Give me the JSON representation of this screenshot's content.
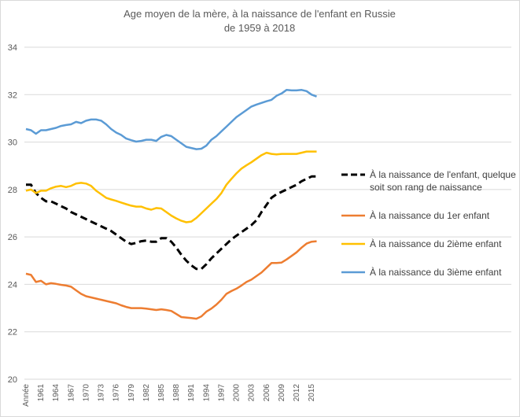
{
  "chart_data": {
    "type": "line",
    "title": [
      "Age moyen de la mère, à la naissance de l'enfant en Russie",
      "de 1959 à 2018"
    ],
    "categories": [
      "Année",
      null,
      null,
      "1961",
      null,
      null,
      "1964",
      null,
      null,
      "1967",
      null,
      null,
      "1970",
      null,
      null,
      "1973",
      null,
      null,
      "1976",
      null,
      null,
      "1979",
      null,
      null,
      "1982",
      null,
      null,
      "1985",
      null,
      null,
      "1988",
      null,
      null,
      "1991",
      null,
      null,
      "1994",
      null,
      null,
      "1997",
      null,
      null,
      "2000",
      null,
      null,
      "2003",
      null,
      null,
      "2006",
      null,
      null,
      "2009",
      null,
      null,
      "2012",
      null,
      null,
      "2015",
      null
    ],
    "ylim": [
      20,
      34
    ],
    "yticks": [
      20,
      22,
      24,
      26,
      28,
      30,
      32,
      34
    ],
    "grid": true,
    "series": [
      {
        "name": "À la naissance de l'enfant, quelque soit son rang de naissance",
        "color": "#000000",
        "dash": true,
        "values": [
          28.2,
          28.2,
          27.85,
          27.65,
          27.5,
          27.5,
          27.4,
          27.3,
          27.2,
          27.05,
          26.95,
          26.85,
          26.75,
          26.65,
          26.55,
          26.45,
          26.35,
          26.25,
          26.1,
          25.95,
          25.8,
          25.7,
          25.75,
          25.82,
          25.85,
          25.8,
          25.8,
          25.95,
          25.95,
          25.8,
          25.55,
          25.25,
          25.0,
          24.8,
          24.65,
          24.65,
          24.85,
          25.1,
          25.3,
          25.5,
          25.7,
          25.9,
          26.05,
          26.2,
          26.35,
          26.5,
          26.7,
          27.05,
          27.35,
          27.65,
          27.8,
          27.9,
          28.0,
          28.1,
          28.2,
          28.35,
          28.45,
          28.55,
          28.55
        ]
      },
      {
        "name": "À la naissance du 1er enfant",
        "color": "#ed7d31",
        "dash": false,
        "values": [
          24.45,
          24.4,
          24.1,
          24.15,
          24.0,
          24.05,
          24.02,
          23.98,
          23.95,
          23.9,
          23.75,
          23.6,
          23.5,
          23.45,
          23.4,
          23.35,
          23.3,
          23.25,
          23.2,
          23.12,
          23.05,
          23.0,
          23.0,
          23.0,
          22.98,
          22.95,
          22.92,
          22.95,
          22.92,
          22.88,
          22.75,
          22.62,
          22.6,
          22.58,
          22.55,
          22.65,
          22.85,
          22.98,
          23.15,
          23.35,
          23.6,
          23.72,
          23.82,
          23.95,
          24.1,
          24.2,
          24.35,
          24.5,
          24.7,
          24.9,
          24.9,
          24.92,
          25.05,
          25.2,
          25.35,
          25.55,
          25.72,
          25.8,
          25.82
        ]
      },
      {
        "name": "À la naissance du 2ième enfant",
        "color": "#ffc000",
        "dash": false,
        "values": [
          27.95,
          28.0,
          27.85,
          27.95,
          27.95,
          28.05,
          28.12,
          28.15,
          28.1,
          28.15,
          28.25,
          28.28,
          28.25,
          28.15,
          27.95,
          27.8,
          27.65,
          27.58,
          27.52,
          27.45,
          27.38,
          27.32,
          27.28,
          27.28,
          27.2,
          27.15,
          27.22,
          27.2,
          27.05,
          26.9,
          26.78,
          26.68,
          26.62,
          26.65,
          26.8,
          27.0,
          27.2,
          27.4,
          27.6,
          27.85,
          28.2,
          28.45,
          28.68,
          28.88,
          29.02,
          29.15,
          29.3,
          29.45,
          29.55,
          29.5,
          29.48,
          29.5,
          29.5,
          29.5,
          29.5,
          29.55,
          29.6,
          29.6,
          29.6
        ]
      },
      {
        "name": "À la naissance du 3ième enfant",
        "color": "#5b9bd5",
        "dash": false,
        "values": [
          30.55,
          30.5,
          30.35,
          30.5,
          30.5,
          30.55,
          30.6,
          30.68,
          30.72,
          30.75,
          30.85,
          30.8,
          30.9,
          30.95,
          30.95,
          30.9,
          30.75,
          30.55,
          30.4,
          30.3,
          30.15,
          30.08,
          30.02,
          30.05,
          30.1,
          30.1,
          30.05,
          30.22,
          30.3,
          30.25,
          30.1,
          29.95,
          29.8,
          29.75,
          29.7,
          29.72,
          29.85,
          30.1,
          30.25,
          30.45,
          30.65,
          30.85,
          31.05,
          31.2,
          31.35,
          31.5,
          31.58,
          31.65,
          31.72,
          31.78,
          31.95,
          32.05,
          32.2,
          32.18,
          32.18,
          32.2,
          32.15,
          32.0,
          31.92
        ]
      }
    ]
  }
}
